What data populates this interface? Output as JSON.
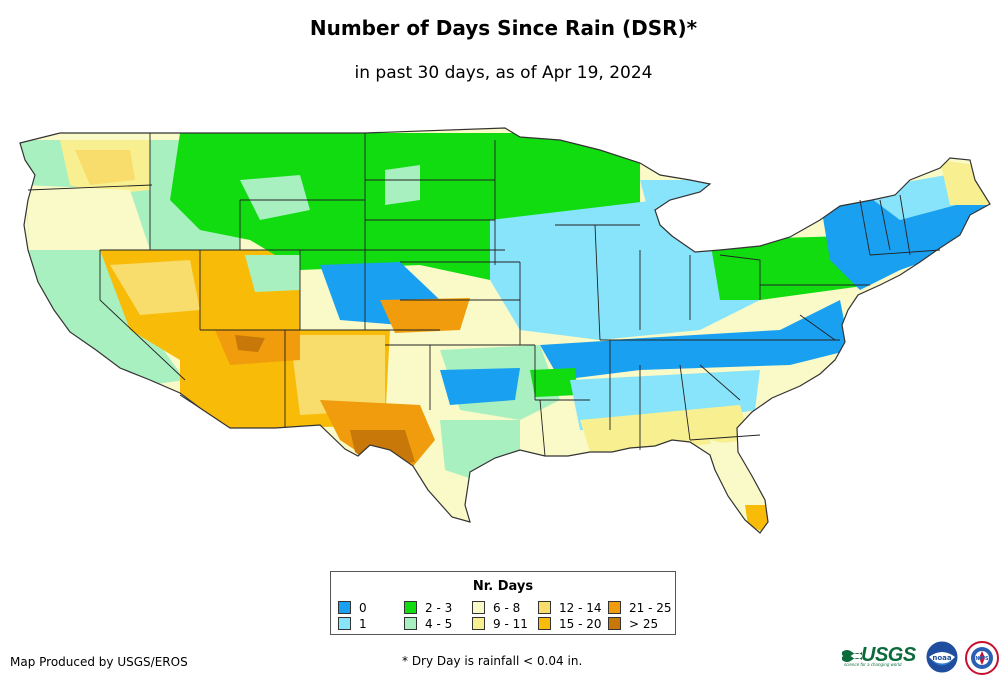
{
  "header": {
    "title": "Number of Days Since Rain (DSR)*",
    "subtitle": "in past 30 days, as of Apr 19, 2024"
  },
  "legend": {
    "title": "Nr. Days",
    "items": [
      {
        "label": "0",
        "color": "#1aa0f0"
      },
      {
        "label": "1",
        "color": "#88e4fa"
      },
      {
        "label": "2 - 3",
        "color": "#10dc10"
      },
      {
        "label": "4 - 5",
        "color": "#a8f0c0"
      },
      {
        "label": "6 - 8",
        "color": "#fafac8"
      },
      {
        "label": "9 - 11",
        "color": "#f8f090"
      },
      {
        "label": "12 - 14",
        "color": "#f8dc6c"
      },
      {
        "label": "15 - 20",
        "color": "#f8bc08"
      },
      {
        "label": "21 - 25",
        "color": "#f09c0c"
      },
      {
        "label": "> 25",
        "color": "#c87808"
      }
    ]
  },
  "footer": {
    "producer": "Map Produced by USGS/EROS",
    "footnote": "* Dry Day is rainfall < 0.04 in."
  },
  "logos": {
    "usgs": "USGS",
    "usgs_tagline": "science for a changing world",
    "noaa": "noaa",
    "nws": "NWS"
  },
  "colors": {
    "state_border": "#222222",
    "land_outline": "#333333"
  }
}
